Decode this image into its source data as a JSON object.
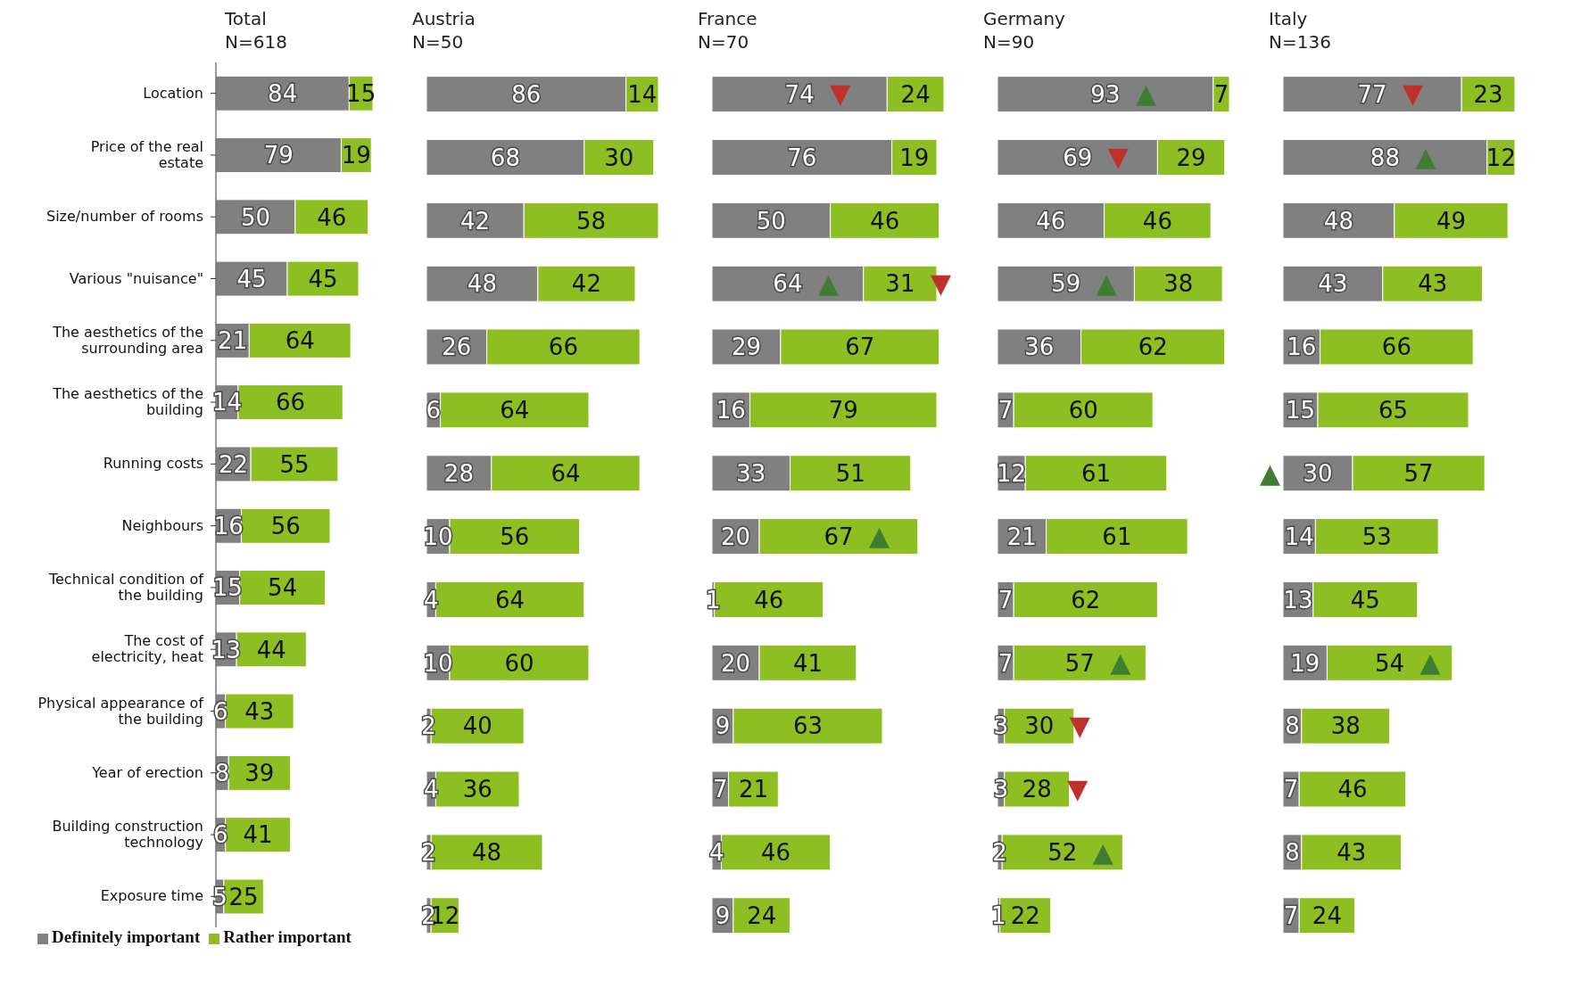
{
  "chart_data": [
    {
      "type": "bar",
      "orientation": "horizontal",
      "stacked": true,
      "title": "Total",
      "subtitle": "N=618",
      "categories": [
        "Location",
        "Price of the real estate",
        "Size/number of rooms",
        "Various \"nuisance\"",
        "The aesthetics of the surrounding area",
        "The aesthetics of the building",
        "Running costs",
        "Neighbours",
        "Technical condition of the building",
        "The cost of electricity, heat",
        "Physical appearance of the building",
        "Year of erection",
        "Building construction technology",
        "Exposure time"
      ],
      "series": [
        {
          "name": "Definitely important",
          "color": "#808080",
          "values": [
            84,
            79,
            50,
            45,
            21,
            14,
            22,
            16,
            15,
            13,
            6,
            8,
            6,
            5
          ]
        },
        {
          "name": "Rather important",
          "color": "#8dbf22",
          "values": [
            15,
            19,
            46,
            45,
            64,
            66,
            55,
            56,
            54,
            44,
            43,
            39,
            41,
            25
          ]
        }
      ],
      "data_labels": true,
      "legend": "bottom",
      "tick_labels": "y"
    },
    {
      "type": "bar",
      "orientation": "horizontal",
      "stacked": true,
      "title": "Austria",
      "subtitle": "N=50",
      "categories": [
        "Location",
        "Price of the real estate",
        "Size/number of rooms",
        "Various \"nuisance\"",
        "The aesthetics of the surrounding area",
        "The aesthetics of the building",
        "Running costs",
        "Neighbours",
        "Technical condition of the building",
        "The cost of electricity, heat",
        "Physical appearance of the building",
        "Year of erection",
        "Building construction technology",
        "Exposure time"
      ],
      "series": [
        {
          "color": "#808080",
          "values": [
            86,
            68,
            42,
            48,
            26,
            6,
            28,
            10,
            4,
            10,
            2,
            4,
            2,
            2
          ]
        },
        {
          "color": "#8dbf22",
          "values": [
            14,
            30,
            58,
            42,
            66,
            64,
            64,
            56,
            64,
            60,
            40,
            36,
            48,
            12
          ]
        }
      ],
      "data_labels": true,
      "tick_labels": false
    },
    {
      "type": "bar",
      "orientation": "horizontal",
      "stacked": true,
      "title": "France",
      "subtitle": "N=70",
      "categories": [
        "Location",
        "Price of the real estate",
        "Size/number of rooms",
        "Various \"nuisance\"",
        "The aesthetics of the surrounding area",
        "The aesthetics of the building",
        "Running costs",
        "Neighbours",
        "Technical condition of the building",
        "The cost of electricity, heat",
        "Physical appearance of the building",
        "Year of erection",
        "Building construction technology",
        "Exposure time"
      ],
      "series": [
        {
          "color": "#808080",
          "values": [
            74,
            76,
            50,
            64,
            29,
            16,
            33,
            20,
            1,
            20,
            9,
            7,
            4,
            9
          ]
        },
        {
          "color": "#8dbf22",
          "values": [
            24,
            19,
            46,
            31,
            67,
            79,
            51,
            67,
            46,
            41,
            63,
            21,
            46,
            24
          ]
        }
      ],
      "data_labels": true,
      "tick_labels": false,
      "annotations": [
        {
          "text": "▼",
          "x": 74,
          "y": "Location"
        },
        {
          "text": "▲",
          "x": 64,
          "y": "Various \"nuisance\""
        },
        {
          "text": "▼",
          "x": 95,
          "y": "Various \"nuisance\""
        },
        {
          "text": "▲",
          "x": 87,
          "y": "Neighbours"
        }
      ]
    },
    {
      "type": "bar",
      "orientation": "horizontal",
      "stacked": true,
      "title": "Germany",
      "subtitle": "N=90",
      "categories": [
        "Location",
        "Price of the real estate",
        "Size/number of rooms",
        "Various \"nuisance\"",
        "The aesthetics of the surrounding area",
        "The aesthetics of the building",
        "Running costs",
        "Neighbours",
        "Technical condition of the building",
        "The cost of electricity, heat",
        "Physical appearance of the building",
        "Year of erection",
        "Building construction technology",
        "Exposure time"
      ],
      "series": [
        {
          "color": "#808080",
          "values": [
            93,
            69,
            46,
            59,
            36,
            7,
            12,
            21,
            7,
            7,
            3,
            3,
            2,
            1
          ]
        },
        {
          "color": "#8dbf22",
          "values": [
            7,
            29,
            46,
            38,
            62,
            60,
            61,
            61,
            62,
            57,
            30,
            28,
            52,
            22
          ]
        }
      ],
      "data_labels": true,
      "tick_labels": false,
      "annotations": [
        {
          "text": "▲",
          "x": 93,
          "y": "Location"
        },
        {
          "text": "▼",
          "x": 69,
          "y": "Price of the real estate"
        },
        {
          "text": "▲",
          "x": 59,
          "y": "Various \"nuisance\""
        },
        {
          "text": "▲",
          "x": 64,
          "y": "The cost of electricity, heat"
        },
        {
          "text": "▼",
          "x": 33,
          "y": "Physical appearance of the building"
        },
        {
          "text": "▼",
          "x": 31,
          "y": "Year of erection"
        },
        {
          "text": "▲",
          "x": 54,
          "y": "Building construction technology"
        }
      ]
    },
    {
      "type": "bar",
      "orientation": "horizontal",
      "stacked": true,
      "title": "Italy",
      "subtitle": "N=136",
      "categories": [
        "Location",
        "Price of the real estate",
        "Size/number of rooms",
        "Various \"nuisance\"",
        "The aesthetics of the surrounding area",
        "The aesthetics of the building",
        "Running costs",
        "Neighbours",
        "Technical condition of the building",
        "The cost of electricity, heat",
        "Physical appearance of the building",
        "Year of erection",
        "Building construction technology",
        "Exposure time"
      ],
      "series": [
        {
          "color": "#808080",
          "values": [
            77,
            88,
            48,
            43,
            16,
            15,
            30,
            14,
            13,
            19,
            8,
            7,
            8,
            7
          ]
        },
        {
          "color": "#8dbf22",
          "values": [
            23,
            12,
            49,
            43,
            66,
            65,
            57,
            53,
            45,
            54,
            38,
            46,
            43,
            24
          ]
        }
      ],
      "data_labels": true,
      "tick_labels": false,
      "annotations": [
        {
          "text": "▼",
          "x": 77,
          "y": "Location"
        },
        {
          "text": "▲",
          "x": 88,
          "y": "Price of the real estate"
        },
        {
          "text": "▲",
          "x": 0,
          "y": "Running costs"
        },
        {
          "text": "▲",
          "x": 73,
          "y": "The cost of electricity, heat"
        }
      ]
    }
  ]
}
